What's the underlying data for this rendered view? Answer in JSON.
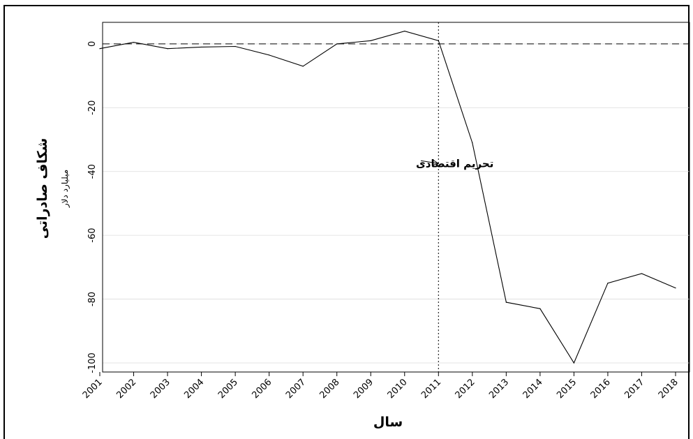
{
  "chart_data": {
    "type": "line",
    "xlabel": "سال",
    "ylabel": "شکاف صادراتی",
    "ylabel_unit": "میلیارد دلار",
    "ylim": [
      -100,
      5
    ],
    "yticks": [
      0,
      -20,
      -40,
      -60,
      -80,
      -100
    ],
    "grid": true,
    "x_tick_labels": [
      "2001",
      "2002",
      "2003",
      "2004",
      "2005",
      "2006",
      "2007",
      "2008",
      "2009",
      "2010",
      "2011",
      "2012",
      "2013",
      "2014",
      "2015",
      "2016",
      "2017",
      "2018"
    ],
    "series": [
      {
        "x": [
          2001,
          2002,
          2003,
          2004,
          2005,
          2006,
          2007,
          2008,
          2009,
          2010,
          2011,
          2012,
          2013,
          2014,
          2015,
          2016,
          2017,
          2018
        ],
        "values": [
          -1.5,
          0.5,
          -1.5,
          -1,
          -0.8,
          -3.5,
          -7,
          0,
          1,
          4,
          1,
          -31,
          -81,
          -83,
          -100,
          -75,
          -72,
          -76.5
        ]
      }
    ],
    "reference_line_y": 0,
    "vertical_line_x": 2011,
    "annotation": {
      "text": "تحریم اقتصادی",
      "x": 2011,
      "y": -37.5
    }
  }
}
